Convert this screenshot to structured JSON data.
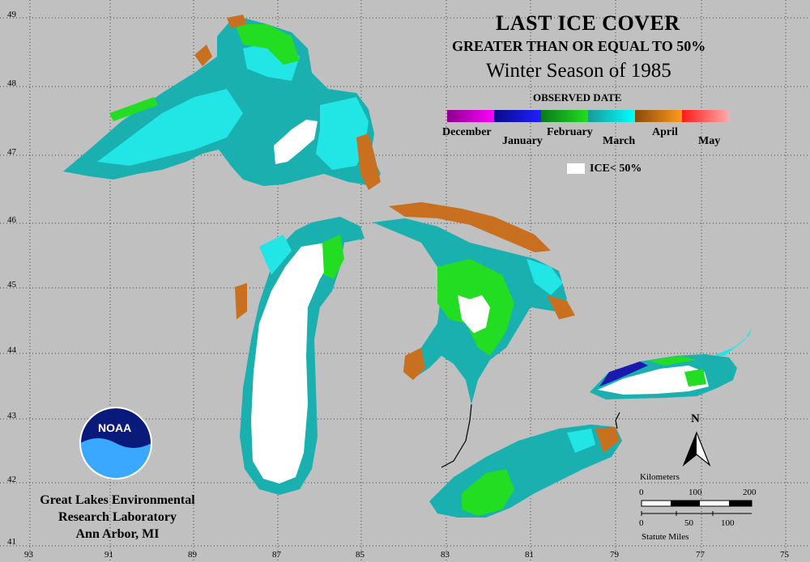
{
  "title": {
    "line1": "LAST ICE COVER",
    "line2": "GREATER THAN OR EQUAL TO 50%",
    "line3": "Winter Season of 1985",
    "legend_heading": "OBSERVED DATE"
  },
  "legend": {
    "months": [
      {
        "label": "December",
        "colors": [
          "#8b008b",
          "#ff00ff"
        ]
      },
      {
        "label": "January",
        "colors": [
          "#0a0a8a",
          "#2020ff"
        ]
      },
      {
        "label": "February",
        "colors": [
          "#0a7a1a",
          "#22dd22"
        ]
      },
      {
        "label": "March",
        "colors": [
          "#1a9a9a",
          "#00ffff"
        ]
      },
      {
        "label": "April",
        "colors": [
          "#8b4a0a",
          "#ff9a1a"
        ]
      },
      {
        "label": "May",
        "colors": [
          "#ff1a1a",
          "#ffaaaa"
        ]
      }
    ],
    "ice_label": "ICE< 50%"
  },
  "organization": {
    "line1": "Great Lakes Environmental",
    "line2": "Research Laboratory",
    "line3": "Ann Arbor, MI",
    "logo_text": "NOAA"
  },
  "north_arrow": "N",
  "scale_bar": {
    "km_title": "Kilometers",
    "km_ticks": [
      "0",
      "100",
      "200"
    ],
    "mi_ticks": [
      "0",
      "50",
      "100"
    ],
    "mi_title": "Statute Miles"
  },
  "axes": {
    "latitudes": [
      "49",
      "48",
      "47",
      "46",
      "45",
      "44",
      "43",
      "42",
      "41"
    ],
    "longitudes": [
      "93",
      "91",
      "89",
      "87",
      "85",
      "83",
      "81",
      "79",
      "77",
      "75"
    ]
  },
  "colors": {
    "background": "#c0c0c0",
    "ice_lt_50": "#ffffff",
    "march": "#1ab0b0",
    "march_light": "#22e6e6",
    "february": "#22dd22",
    "april": "#c87020",
    "january": "#1a1ab0"
  }
}
